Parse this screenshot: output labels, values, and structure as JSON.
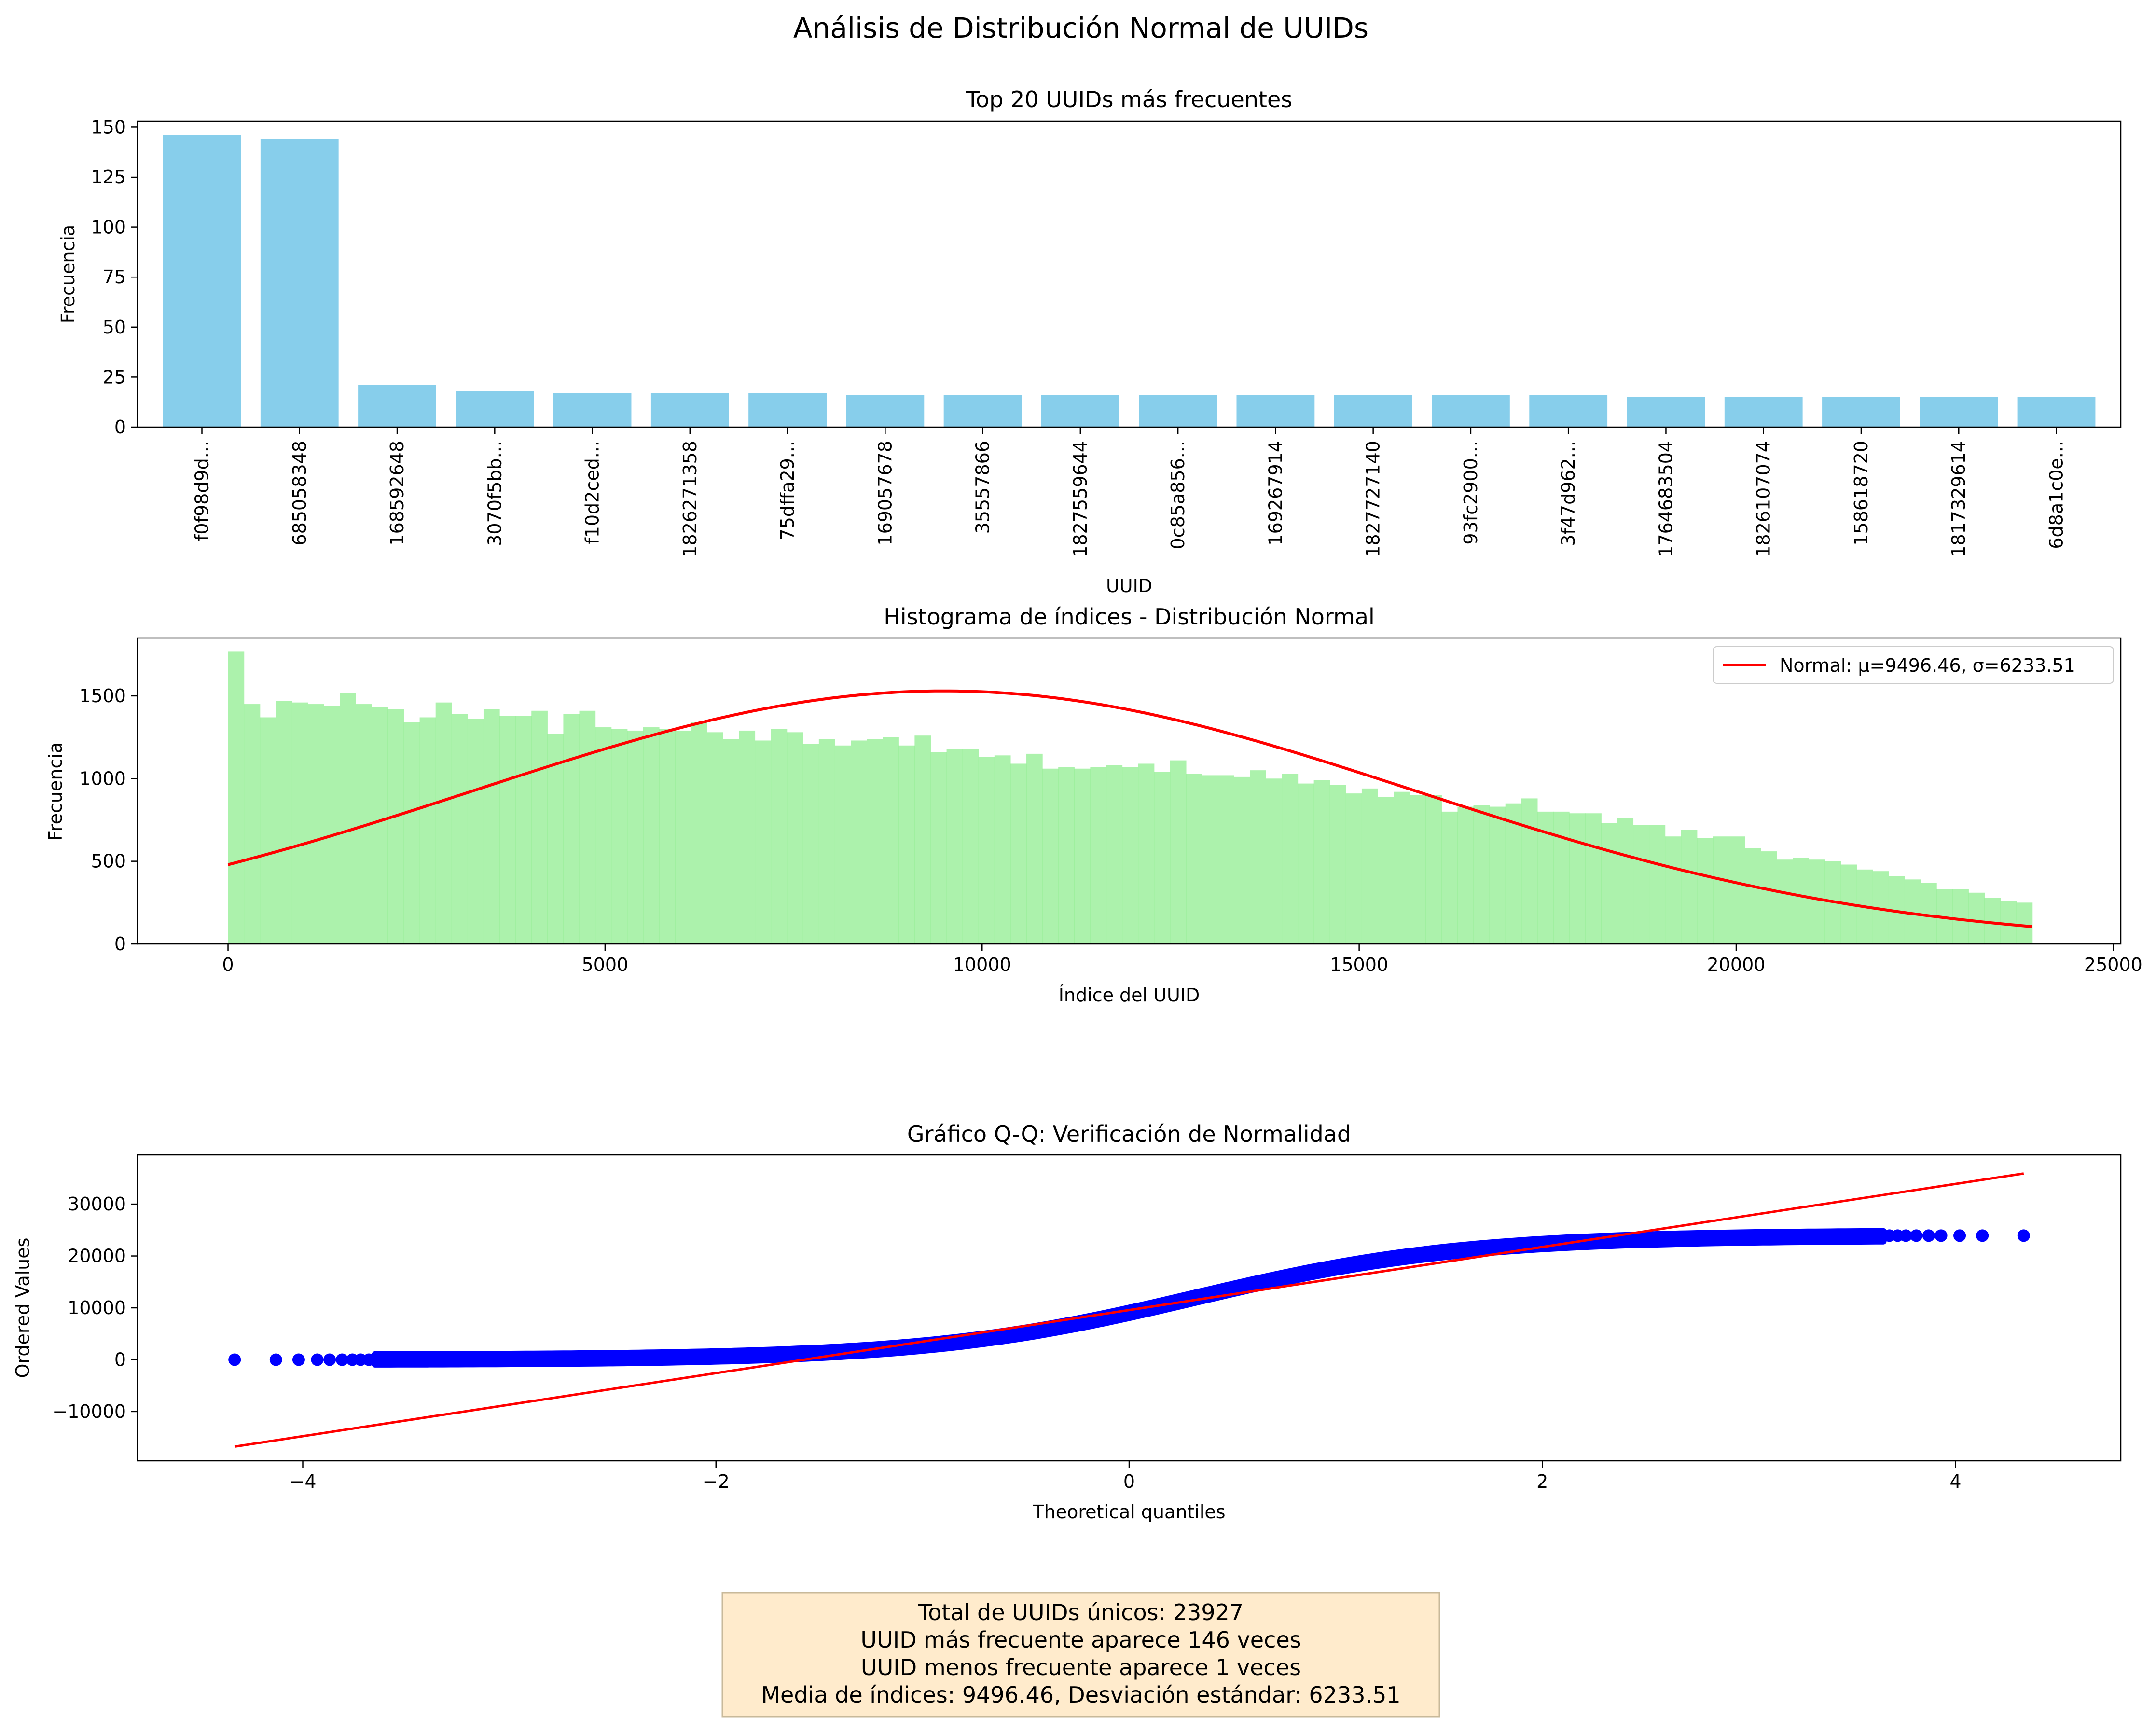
{
  "figure": {
    "suptitle": "Análisis de Distribución Normal de UUIDs"
  },
  "chart_data": [
    {
      "type": "bar",
      "title": "Top 20 UUIDs más frecuentes",
      "xlabel": "UUID",
      "ylabel": "Frecuencia",
      "categories": [
        "f0f98d9d...",
        "685058348",
        "168592648",
        "3070f5bb...",
        "f10d2ced...",
        "1826271358",
        "75dffa29...",
        "169057678",
        "35557866",
        "1827559644",
        "0c85a856...",
        "169267914",
        "1827727140",
        "93fc2900...",
        "3f47d962...",
        "1764683504",
        "1826107074",
        "158618720",
        "1817329614",
        "6d8a1c0e..."
      ],
      "values": [
        146,
        144,
        21,
        18,
        17,
        17,
        17,
        16,
        16,
        16,
        16,
        16,
        16,
        16,
        16,
        15,
        15,
        15,
        15,
        15
      ],
      "ylim": [
        0,
        153
      ],
      "yticks": [
        0,
        25,
        50,
        75,
        100,
        125,
        150
      ],
      "color": "#87ceeb",
      "grid": false
    },
    {
      "type": "bar",
      "subtype": "histogram",
      "title": "Histograma de índices - Distribución Normal",
      "xlabel": "Índice del UUID",
      "ylabel": "Frecuencia",
      "xlim": [
        -1200,
        25100
      ],
      "ylim": [
        0,
        1850
      ],
      "xticks": [
        0,
        5000,
        10000,
        15000,
        20000,
        25000
      ],
      "yticks": [
        0,
        500,
        1000,
        1500
      ],
      "bin_start": 0,
      "bin_end": 23927,
      "values": [
        1770,
        1450,
        1370,
        1470,
        1460,
        1450,
        1440,
        1520,
        1450,
        1430,
        1420,
        1340,
        1370,
        1460,
        1390,
        1360,
        1420,
        1380,
        1380,
        1410,
        1270,
        1390,
        1410,
        1310,
        1300,
        1290,
        1310,
        1300,
        1290,
        1340,
        1280,
        1240,
        1290,
        1230,
        1300,
        1280,
        1210,
        1240,
        1200,
        1230,
        1240,
        1250,
        1200,
        1260,
        1160,
        1180,
        1180,
        1130,
        1140,
        1090,
        1150,
        1060,
        1070,
        1060,
        1070,
        1080,
        1070,
        1090,
        1040,
        1110,
        1030,
        1020,
        1020,
        1010,
        1050,
        1000,
        1030,
        970,
        990,
        960,
        910,
        940,
        890,
        920,
        900,
        900,
        800,
        830,
        840,
        830,
        850,
        880,
        800,
        800,
        790,
        790,
        730,
        760,
        720,
        720,
        650,
        690,
        640,
        650,
        650,
        580,
        560,
        510,
        520,
        510,
        500,
        480,
        450,
        440,
        410,
        390,
        370,
        330,
        330,
        310,
        280,
        260,
        250
      ],
      "color": "#90ee90",
      "series": [
        {
          "name": "Normal: μ=9496.46, σ=6233.51",
          "mu": 9496.46,
          "sigma": 6233.51,
          "scale": 1530,
          "color": "#ff0000"
        }
      ],
      "legend": "top-right",
      "grid": false
    },
    {
      "type": "scatter",
      "title": "Gráfico Q-Q: Verificación de Normalidad",
      "xlabel": "Theoretical quantiles",
      "ylabel": "Ordered Values",
      "xlim": [
        -4.8,
        4.8
      ],
      "ylim": [
        -19500,
        39500
      ],
      "xticks": [
        -4,
        -2,
        0,
        2,
        4
      ],
      "yticks": [
        -10000,
        0,
        10000,
        20000,
        30000
      ],
      "outliers_low": [
        [
          -4.33,
          0
        ],
        [
          -4.13,
          0
        ],
        [
          -4.02,
          0
        ],
        [
          -3.93,
          0
        ],
        [
          -3.87,
          0
        ],
        [
          -3.81,
          0
        ],
        [
          -3.76,
          0
        ],
        [
          -3.72,
          0
        ],
        [
          -3.68,
          0
        ]
      ],
      "outliers_high": [
        [
          3.68,
          23927
        ],
        [
          3.72,
          23927
        ],
        [
          3.76,
          23927
        ],
        [
          3.81,
          23927
        ],
        [
          3.87,
          23927
        ],
        [
          3.93,
          23927
        ],
        [
          4.02,
          23927
        ],
        [
          4.13,
          23927
        ],
        [
          4.33,
          23927
        ]
      ],
      "body_range": [
        -3.65,
        3.65
      ],
      "fit_line": {
        "x": [
          -4.33,
          4.33
        ],
        "y": [
          -16760,
          35900
        ],
        "color": "#ff0000"
      },
      "point_color": "#0000ff",
      "grid": false
    }
  ],
  "summary": {
    "lines": [
      "Total de UUIDs únicos: 23927",
      "UUID más frecuente aparece 146 veces",
      "UUID menos frecuente aparece 1 veces",
      "Media de índices: 9496.46, Desviación estándar: 6233.51"
    ],
    "bg_color": "#ffebcc"
  }
}
